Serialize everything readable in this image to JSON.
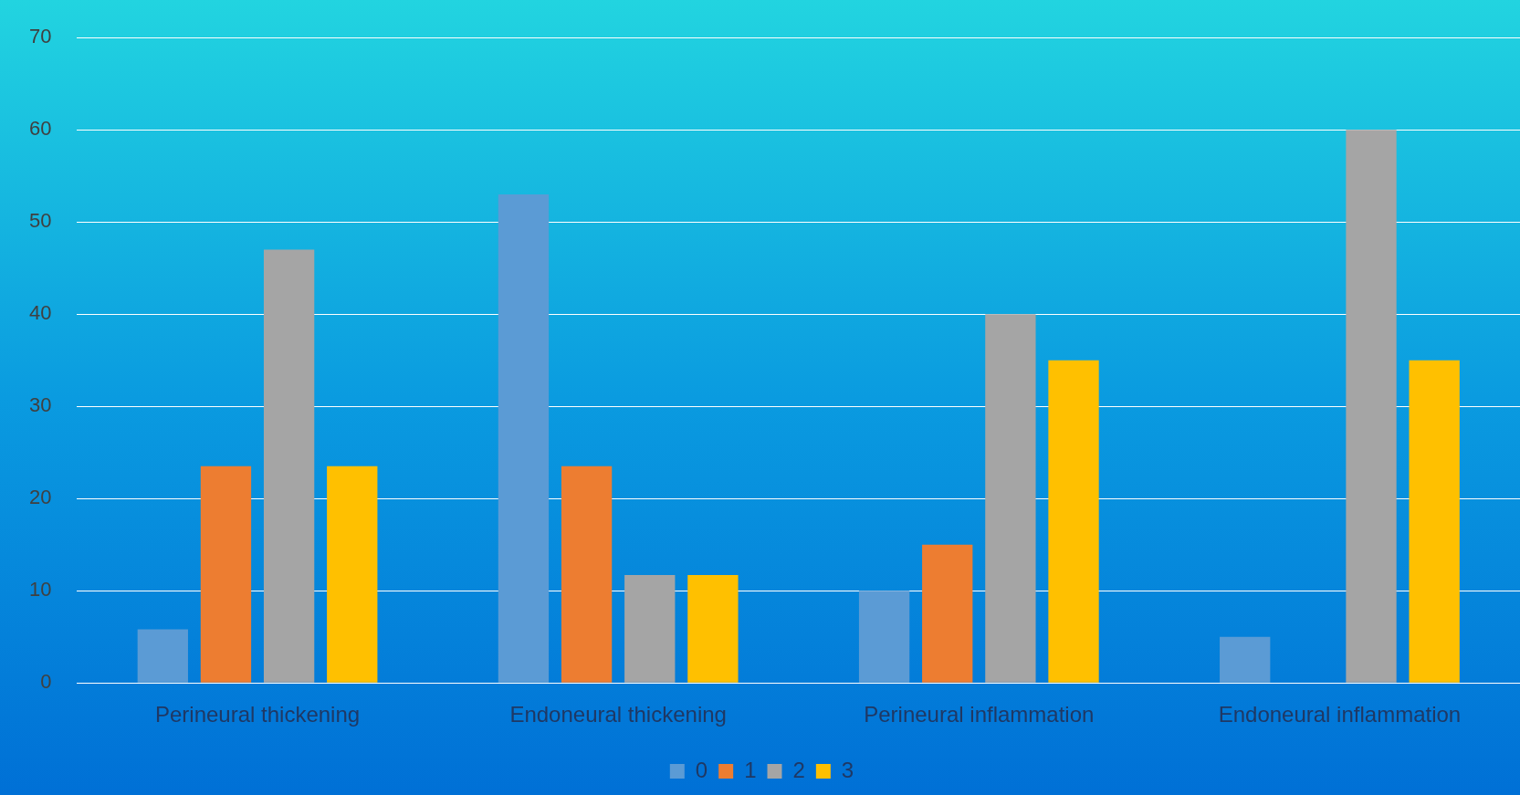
{
  "chart_data": {
    "type": "bar",
    "categories": [
      "Perineural thickening",
      "Endoneural thickening",
      "Perineural inflammation",
      "Endoneural inflammation"
    ],
    "series": [
      {
        "name": "0",
        "color": "#5b9bd5",
        "values": [
          5.8,
          53,
          10,
          5
        ]
      },
      {
        "name": "1",
        "color": "#ed7d31",
        "values": [
          23.5,
          23.5,
          15,
          0
        ]
      },
      {
        "name": "2",
        "color": "#a5a5a5",
        "values": [
          47,
          11.7,
          40,
          60
        ]
      },
      {
        "name": "3",
        "color": "#ffc000",
        "values": [
          23.5,
          11.7,
          35,
          35
        ]
      }
    ],
    "ylim": [
      0,
      70
    ],
    "yticks": [
      0,
      10,
      20,
      30,
      40,
      50,
      60,
      70
    ],
    "grid": "y",
    "legend": "bottom"
  }
}
